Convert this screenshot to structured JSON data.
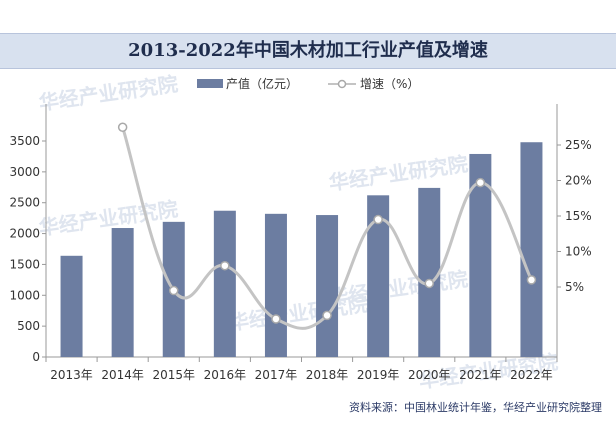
{
  "title": "2013-2022年中国木材加工行业产值及增速",
  "legend": {
    "bar_label": "产值（亿元）",
    "line_label": "增速（%）"
  },
  "source": "资料来源：中国林业统计年鉴，华经产业研究院整理",
  "watermark": "华经产业研究院",
  "colors": {
    "bar": "#6c7da1",
    "line": "#c4c4c4",
    "marker_fill": "#ffffff",
    "marker_stroke": "#a9a9a9",
    "title_bg": "#d8e1ef"
  },
  "chart_data": {
    "type": "bar",
    "categories": [
      "2013年",
      "2014年",
      "2015年",
      "2016年",
      "2017年",
      "2018年",
      "2019年",
      "2020年",
      "2021年",
      "2022年"
    ],
    "series": [
      {
        "name": "产值（亿元）",
        "type": "bar",
        "axis": "left",
        "values": [
          1640,
          2090,
          2190,
          2370,
          2320,
          2300,
          2620,
          2740,
          3290,
          3480
        ]
      },
      {
        "name": "增速（%）",
        "type": "line",
        "axis": "right",
        "values": [
          null,
          27.5,
          4.5,
          8.0,
          0.5,
          1.0,
          14.5,
          5.5,
          19.7,
          6.0
        ]
      }
    ],
    "y_left": {
      "min": 0,
      "max": 3500,
      "ticks": [
        "0",
        "500",
        "1000",
        "1500",
        "2000",
        "2500",
        "3000",
        "3500"
      ]
    },
    "y_right": {
      "min": 0,
      "max": 25,
      "ticks": [
        "5%",
        "10%",
        "15%",
        "20%",
        "25%"
      ]
    },
    "grid": false,
    "legend_position": "top"
  }
}
